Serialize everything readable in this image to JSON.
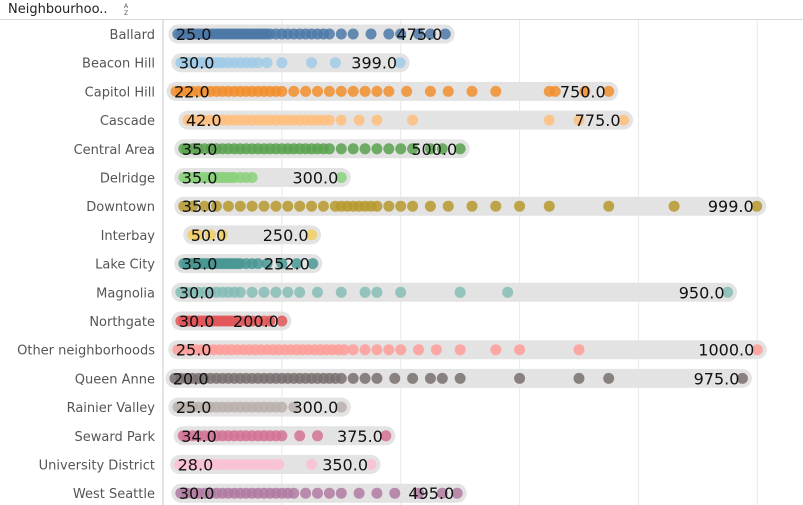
{
  "header": {
    "title": "Neighbourhoo..",
    "sort_icon": "sort-alpha-icon"
  },
  "chart_data": {
    "type": "scatter",
    "title": "",
    "xlabel": "",
    "ylabel": "",
    "xlim": [
      0,
      1050
    ],
    "grid": true,
    "legend": "none",
    "categories": [
      "Ballard",
      "Beacon Hill",
      "Capitol Hill",
      "Cascade",
      "Central Area",
      "Delridge",
      "Downtown",
      "Interbay",
      "Lake City",
      "Magnolia",
      "Northgate",
      "Other neighborhoods",
      "Queen Anne",
      "Rainier Valley",
      "Seward Park",
      "University District",
      "West Seattle"
    ],
    "series": [
      {
        "category": "Ballard",
        "color": "#4e79a7",
        "min": 25.0,
        "max": 475.0,
        "min_label": "25.0",
        "max_label": "475.0",
        "points": [
          25,
          30,
          35,
          40,
          45,
          50,
          55,
          60,
          65,
          70,
          75,
          80,
          85,
          90,
          95,
          100,
          105,
          110,
          115,
          120,
          125,
          130,
          135,
          140,
          145,
          150,
          155,
          160,
          165,
          170,
          175,
          180,
          190,
          200,
          210,
          220,
          230,
          240,
          250,
          260,
          270,
          280,
          300,
          320,
          350,
          380,
          400,
          430,
          450,
          475
        ]
      },
      {
        "category": "Beacon Hill",
        "color": "#a0cbe8",
        "min": 30.0,
        "max": 399.0,
        "min_label": "30.0",
        "max_label": "399.0",
        "points": [
          30,
          35,
          40,
          45,
          50,
          55,
          60,
          65,
          70,
          75,
          80,
          85,
          90,
          95,
          100,
          110,
          120,
          130,
          140,
          150,
          160,
          175,
          200,
          250,
          290,
          399
        ]
      },
      {
        "category": "Capitol Hill",
        "color": "#f28e2b",
        "min": 22.0,
        "max": 750.0,
        "min_label": "22.0",
        "max_label": "750.0",
        "points": [
          22,
          30,
          40,
          50,
          60,
          70,
          80,
          90,
          100,
          110,
          120,
          130,
          140,
          150,
          160,
          170,
          180,
          190,
          200,
          220,
          240,
          260,
          280,
          300,
          320,
          340,
          360,
          380,
          410,
          450,
          480,
          520,
          560,
          650,
          660,
          710,
          750
        ]
      },
      {
        "category": "Cascade",
        "color": "#ffbe7d",
        "min": 42.0,
        "max": 775.0,
        "min_label": "42.0",
        "max_label": "775.0",
        "points": [
          42,
          50,
          60,
          70,
          80,
          90,
          100,
          110,
          120,
          130,
          140,
          150,
          160,
          170,
          180,
          190,
          200,
          210,
          220,
          230,
          240,
          250,
          260,
          270,
          280,
          300,
          330,
          360,
          420,
          650,
          700,
          775
        ]
      },
      {
        "category": "Central Area",
        "color": "#59a14f",
        "min": 35.0,
        "max": 500.0,
        "min_label": "35.0",
        "max_label": "500.0",
        "points": [
          35,
          40,
          50,
          60,
          70,
          80,
          90,
          100,
          110,
          120,
          130,
          140,
          150,
          160,
          170,
          180,
          190,
          200,
          210,
          220,
          230,
          240,
          250,
          260,
          270,
          280,
          300,
          320,
          340,
          360,
          380,
          400,
          420,
          450,
          470,
          500
        ]
      },
      {
        "category": "Delridge",
        "color": "#8cd17d",
        "min": 35.0,
        "max": 300.0,
        "min_label": "35.0",
        "max_label": "300.0",
        "points": [
          35,
          40,
          45,
          50,
          55,
          60,
          65,
          70,
          75,
          80,
          85,
          90,
          95,
          100,
          105,
          110,
          115,
          120,
          130,
          140,
          150,
          300
        ]
      },
      {
        "category": "Downtown",
        "color": "#b6992d",
        "min": 35.0,
        "max": 999.0,
        "min_label": "35.0",
        "max_label": "999.0",
        "points": [
          35,
          50,
          70,
          90,
          110,
          130,
          150,
          170,
          190,
          210,
          230,
          250,
          270,
          290,
          300,
          310,
          320,
          330,
          340,
          350,
          360,
          380,
          400,
          420,
          450,
          480,
          520,
          560,
          600,
          650,
          750,
          860,
          999
        ]
      },
      {
        "category": "Interbay",
        "color": "#f1ce63",
        "min": 50.0,
        "max": 250.0,
        "min_label": "50.0",
        "max_label": "250.0",
        "points": [
          50,
          60,
          80,
          100,
          250
        ]
      },
      {
        "category": "Lake City",
        "color": "#499894",
        "min": 35.0,
        "max": 252.0,
        "min_label": "35.0",
        "max_label": "252.0",
        "points": [
          35,
          40,
          45,
          50,
          55,
          60,
          65,
          70,
          75,
          80,
          85,
          90,
          95,
          100,
          105,
          110,
          115,
          120,
          125,
          130,
          140,
          150,
          160,
          175,
          200,
          225,
          252
        ]
      },
      {
        "category": "Magnolia",
        "color": "#86bcb6",
        "min": 30.0,
        "max": 950.0,
        "min_label": "30.0",
        "max_label": "950.0",
        "points": [
          30,
          40,
          50,
          60,
          70,
          80,
          90,
          100,
          110,
          120,
          130,
          150,
          170,
          190,
          210,
          230,
          260,
          300,
          340,
          360,
          400,
          500,
          580,
          950
        ]
      },
      {
        "category": "Northgate",
        "color": "#e15759",
        "min": 30.0,
        "max": 200.0,
        "min_label": "30.0",
        "max_label": "200.0",
        "points": [
          30,
          35,
          40,
          45,
          50,
          55,
          60,
          65,
          70,
          75,
          80,
          85,
          90,
          95,
          100,
          105,
          110,
          115,
          120,
          130,
          140,
          150,
          160,
          170,
          180,
          200
        ]
      },
      {
        "category": "Other neighborhoods",
        "color": "#ff9d9a",
        "min": 25.0,
        "max": 1000.0,
        "min_label": "25.0",
        "max_label": "1000.0",
        "points": [
          25,
          35,
          45,
          55,
          65,
          75,
          85,
          95,
          105,
          115,
          125,
          135,
          145,
          155,
          165,
          175,
          185,
          195,
          205,
          215,
          225,
          235,
          245,
          255,
          265,
          275,
          285,
          295,
          305,
          320,
          340,
          360,
          380,
          400,
          430,
          460,
          500,
          560,
          600,
          700,
          1000
        ]
      },
      {
        "category": "Queen Anne",
        "color": "#79706e",
        "min": 20.0,
        "max": 975.0,
        "min_label": "20.0",
        "max_label": "975.0",
        "points": [
          20,
          30,
          40,
          50,
          60,
          70,
          80,
          90,
          100,
          110,
          120,
          130,
          140,
          150,
          160,
          170,
          180,
          190,
          200,
          210,
          220,
          230,
          240,
          250,
          260,
          270,
          280,
          290,
          300,
          320,
          340,
          360,
          390,
          420,
          450,
          470,
          500,
          600,
          700,
          750,
          975
        ]
      },
      {
        "category": "Rainier Valley",
        "color": "#bab0ac",
        "min": 25.0,
        "max": 300.0,
        "min_label": "25.0",
        "max_label": "300.0",
        "points": [
          25,
          30,
          40,
          50,
          60,
          70,
          80,
          90,
          100,
          110,
          120,
          130,
          140,
          150,
          160,
          170,
          180,
          190,
          200,
          220,
          300
        ]
      },
      {
        "category": "Seward Park",
        "color": "#d37295",
        "min": 34.0,
        "max": 375.0,
        "min_label": "34.0",
        "max_label": "375.0",
        "points": [
          34,
          40,
          50,
          60,
          70,
          80,
          90,
          100,
          110,
          120,
          130,
          140,
          150,
          160,
          170,
          180,
          190,
          200,
          230,
          260,
          375
        ]
      },
      {
        "category": "University District",
        "color": "#fabfd2",
        "min": 28.0,
        "max": 350.0,
        "min_label": "28.0",
        "max_label": "350.0",
        "points": [
          28,
          35,
          45,
          55,
          65,
          75,
          85,
          95,
          105,
          115,
          125,
          135,
          145,
          155,
          165,
          175,
          185,
          195,
          250,
          350
        ]
      },
      {
        "category": "West Seattle",
        "color": "#b07aa1",
        "min": 30.0,
        "max": 495.0,
        "min_label": "30.0",
        "max_label": "495.0",
        "points": [
          30,
          40,
          50,
          60,
          70,
          80,
          90,
          100,
          110,
          120,
          130,
          140,
          150,
          160,
          170,
          180,
          190,
          200,
          210,
          220,
          240,
          260,
          280,
          300,
          330,
          360,
          390,
          430,
          470,
          495
        ]
      }
    ]
  }
}
